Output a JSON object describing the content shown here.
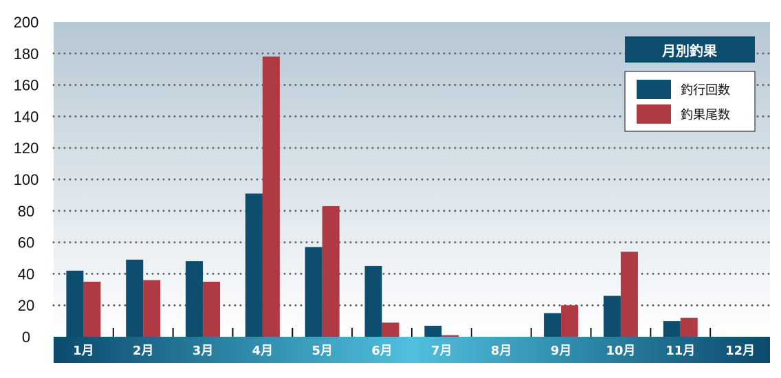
{
  "chart_data": {
    "type": "bar",
    "title": "",
    "xlabel": "",
    "ylabel": "",
    "ylim": [
      0,
      200
    ],
    "yticks": [
      "0",
      "20",
      "40",
      "60",
      "80",
      "100",
      "120",
      "140",
      "160",
      "180",
      "200"
    ],
    "categories": [
      "1月",
      "2月",
      "3月",
      "4月",
      "5月",
      "6月",
      "7月",
      "8月",
      "9月",
      "10月",
      "11月",
      "12月"
    ],
    "series": [
      {
        "name": "釣行回数",
        "color": "#0d4d6e",
        "values": [
          42,
          49,
          48,
          91,
          57,
          45,
          7,
          0,
          15,
          26,
          10,
          0
        ]
      },
      {
        "name": "釣果尾数",
        "color": "#b03a44",
        "values": [
          35,
          36,
          35,
          178,
          83,
          9,
          1,
          0,
          20,
          54,
          12,
          0
        ]
      }
    ],
    "legend": {
      "title": "月別釣果",
      "placement": "top-right"
    },
    "grid": true,
    "colors": {
      "plot_bg_top": "#b6c8d5",
      "plot_bg_bottom": "#ffffff",
      "grid": "#666666",
      "axis_bar_edge": "#0b4a6c",
      "axis_bar_center": "#4fc0dd",
      "legend_title_bg": "#0d4d6e"
    }
  }
}
